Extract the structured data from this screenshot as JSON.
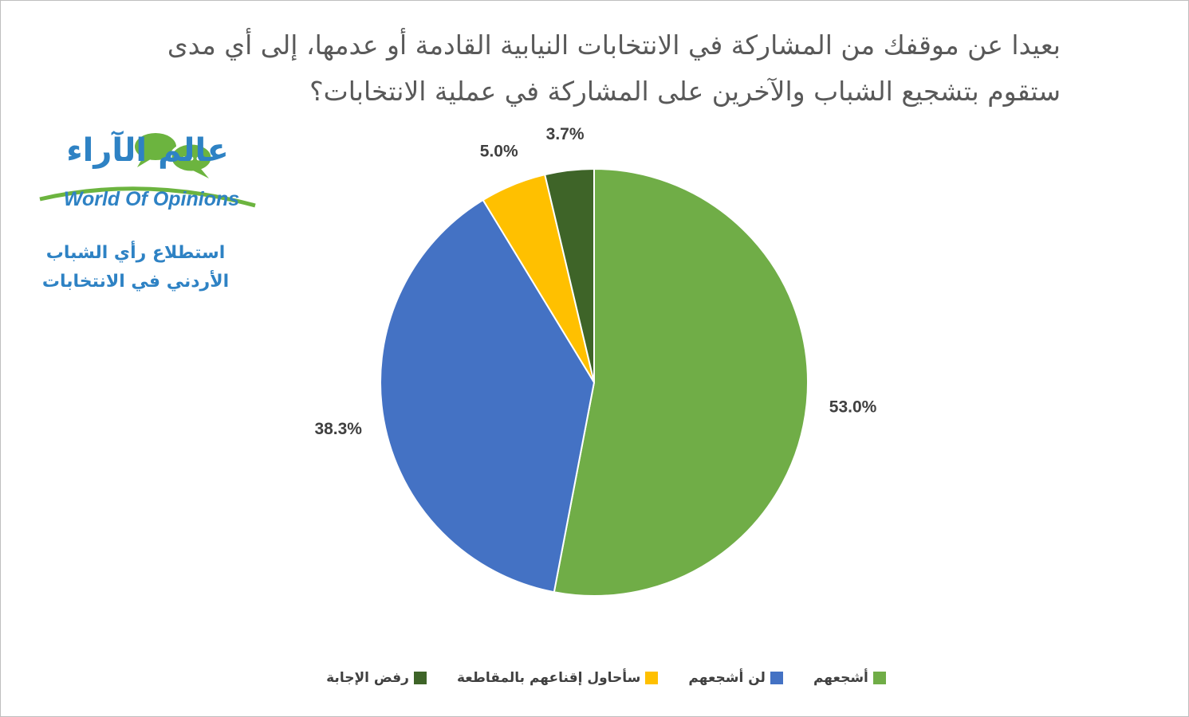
{
  "chart_data": {
    "type": "pie",
    "title_lines": [
      "بعيدا عن موقفك من المشاركة في الانتخابات النيابية القادمة أو عدمها، إلى أي مدى",
      "ستقوم بتشجيع الشباب والآخرين على المشاركة في عملية الانتخابات؟"
    ],
    "slices": [
      {
        "label": "أشجعهم",
        "value": 53.0,
        "display": "53.0%",
        "color": "#70ad47"
      },
      {
        "label": "لن أشجعهم",
        "value": 38.3,
        "display": "38.3%",
        "color": "#4472c4"
      },
      {
        "label": "سأحاول إقناعهم بالمقاطعة",
        "value": 5.0,
        "display": "5.0%",
        "color": "#ffc000"
      },
      {
        "label": "رفض الإجابة",
        "value": 3.7,
        "display": "3.7%",
        "color": "#3e6428"
      }
    ],
    "legend_position": "bottom",
    "start_angle": "top",
    "direction": "clockwise"
  },
  "branding": {
    "logo_ar": "عالم الآراء",
    "logo_en": "World Of Opinions",
    "logo_color": "#2e82c4",
    "bubble_color": "#6cb43f",
    "subtitle_lines": [
      "استطلاع رأي الشباب",
      "الأردني في الانتخابات"
    ]
  }
}
